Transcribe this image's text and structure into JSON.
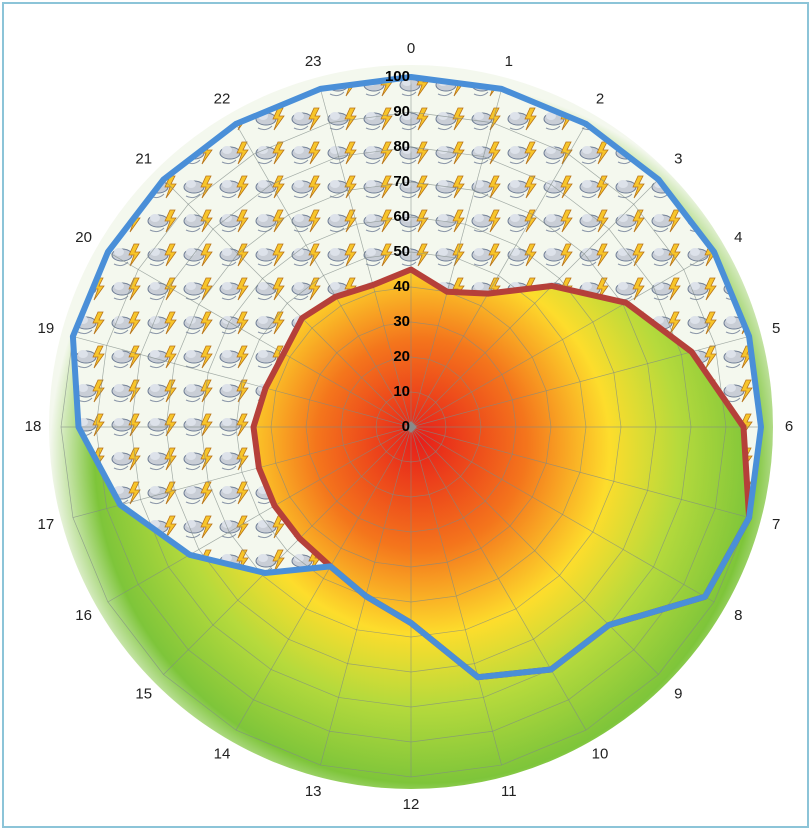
{
  "chart_data": {
    "type": "radar",
    "categories": [
      "0",
      "1",
      "2",
      "3",
      "4",
      "5",
      "6",
      "7",
      "8",
      "9",
      "10",
      "11",
      "12",
      "13",
      "14",
      "15",
      "16",
      "17",
      "18",
      "19",
      "20",
      "21",
      "22",
      "23"
    ],
    "rlim": [
      0,
      100
    ],
    "rticks": [
      0,
      10,
      20,
      30,
      40,
      50,
      60,
      70,
      80,
      90,
      100
    ],
    "grid": true,
    "series": [
      {
        "color": "#4a8fd8",
        "values": [
          100,
          100,
          100,
          100,
          100,
          100,
          100,
          100,
          97,
          80,
          80,
          74,
          56,
          50,
          46,
          59,
          73,
          86,
          95,
          100,
          100,
          100,
          100,
          100
        ]
      },
      {
        "color": "#b5403a",
        "values": [
          45,
          40,
          44,
          57,
          71,
          83,
          95,
          100,
          97,
          80,
          80,
          74,
          56,
          50,
          46,
          45,
          45,
          45,
          45,
          43,
          42,
          44,
          43,
          42
        ]
      }
    ]
  }
}
